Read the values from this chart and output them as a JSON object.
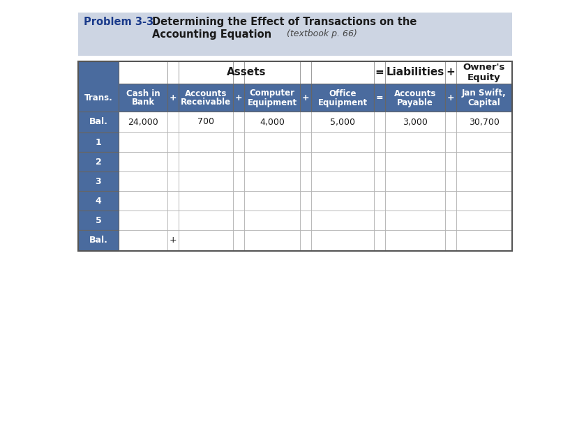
{
  "title_problem": "Problem 3-3",
  "title_main": "Determining the Effect of Transactions on the",
  "title_main2": "Accounting Equation",
  "title_sub": "(textbook p. 66)",
  "title_area_bg": "#cdd5e3",
  "table_header_bg": "#4a6b9e",
  "row_bg": "#ffffff",
  "grid_color": "#999999",
  "col_header1_line1": "Cash in",
  "col_header1_line2": "Bank",
  "col_header2_line1": "Accounts",
  "col_header2_line2": "Receivable",
  "col_header3_line1": "Computer",
  "col_header3_line2": "Equipment",
  "col_header4_line1": "Office",
  "col_header4_line2": "Equipment",
  "col_header5_line1": "Accounts",
  "col_header5_line2": "Payable",
  "col_header6_line1": "Jan Swift,",
  "col_header6_line2": "Capital",
  "trans_label": "Trans.",
  "assets_label": "Assets",
  "liabilities_label": "Liabilities",
  "owners_equity_label": "Owner's\nEquity",
  "equals_sign": "=",
  "plus_sign": "+",
  "bal_label": "Bal.",
  "bal_values": [
    "24,000",
    "700",
    "4,000",
    "5,000",
    "3,000",
    "30,700"
  ],
  "trans_rows": [
    "1",
    "2",
    "3",
    "4",
    "5"
  ],
  "last_bal_plus": "+",
  "outer_bg": "#ffffff",
  "problem_color": "#1a3a8a",
  "title_text_color": "#1a1a1a",
  "header_text_color": "#ffffff",
  "data_text_color": "#1a1a1a",
  "table_border_color": "#555555",
  "sep_col_bg": "#ffffff"
}
